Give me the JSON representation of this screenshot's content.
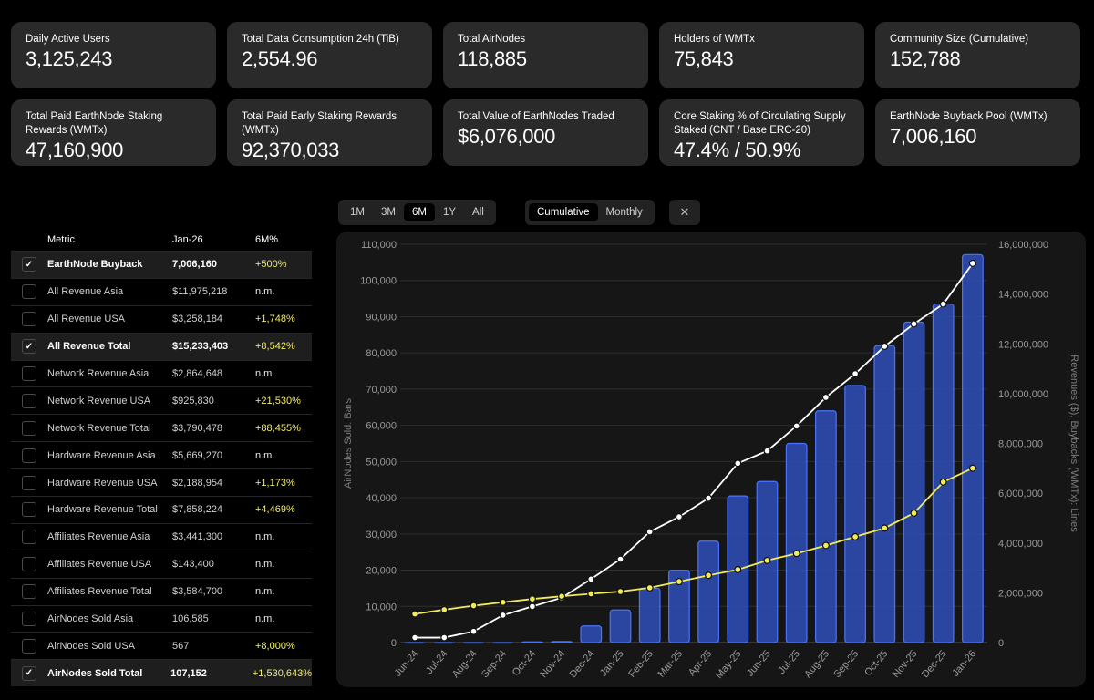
{
  "kpis": [
    {
      "label": "Daily Active Users",
      "value": "3,125,243"
    },
    {
      "label": "Total Data Consumption 24h (TiB)",
      "value": "2,554.96"
    },
    {
      "label": "Total AirNodes",
      "value": "118,885"
    },
    {
      "label": "Holders of WMTx",
      "value": "75,843"
    },
    {
      "label": "Community Size (Cumulative)",
      "value": "152,788"
    },
    {
      "label": "Total Paid EarthNode Staking Rewards (WMTx)",
      "value": "47,160,900"
    },
    {
      "label": "Total Paid Early Staking Rewards (WMTx)",
      "value": "92,370,033"
    },
    {
      "label": "Total Value of EarthNodes Traded",
      "value": "$6,076,000"
    },
    {
      "label": "Core Staking % of Circulating Supply Staked (CNT / Base ERC-20)",
      "value": "47.4% / 50.9%"
    },
    {
      "label": "EarthNode Buyback Pool (WMTx)",
      "value": "7,006,160"
    }
  ],
  "range_tabs": [
    "1M",
    "3M",
    "6M",
    "1Y",
    "All"
  ],
  "range_selected": "6M",
  "mode_tabs": [
    "Cumulative",
    "Monthly"
  ],
  "mode_selected": "Cumulative",
  "close_label": "✕",
  "table": {
    "headers": {
      "metric": "Metric",
      "period": "Jan-26",
      "change": "6M%"
    },
    "rows": [
      {
        "metric": "EarthNode Buyback",
        "value": "7,006,160",
        "change": "+500%",
        "checked": true
      },
      {
        "metric": "All Revenue Asia",
        "value": "$11,975,218",
        "change": "n.m.",
        "checked": false
      },
      {
        "metric": "All Revenue USA",
        "value": "$3,258,184",
        "change": "+1,748%",
        "checked": false
      },
      {
        "metric": "All Revenue Total",
        "value": "$15,233,403",
        "change": "+8,542%",
        "checked": true
      },
      {
        "metric": "Network Revenue Asia",
        "value": "$2,864,648",
        "change": "n.m.",
        "checked": false
      },
      {
        "metric": "Network Revenue USA",
        "value": "$925,830",
        "change": "+21,530%",
        "checked": false
      },
      {
        "metric": "Network Revenue Total",
        "value": "$3,790,478",
        "change": "+88,455%",
        "checked": false
      },
      {
        "metric": "Hardware Revenue Asia",
        "value": "$5,669,270",
        "change": "n.m.",
        "checked": false
      },
      {
        "metric": "Hardware Revenue USA",
        "value": "$2,188,954",
        "change": "+1,173%",
        "checked": false
      },
      {
        "metric": "Hardware Revenue Total",
        "value": "$7,858,224",
        "change": "+4,469%",
        "checked": false
      },
      {
        "metric": "Affiliates Revenue Asia",
        "value": "$3,441,300",
        "change": "n.m.",
        "checked": false
      },
      {
        "metric": "Affiliates Revenue USA",
        "value": "$143,400",
        "change": "n.m.",
        "checked": false
      },
      {
        "metric": "Affiliates Revenue Total",
        "value": "$3,584,700",
        "change": "n.m.",
        "checked": false
      },
      {
        "metric": "AirNodes Sold Asia",
        "value": "106,585",
        "change": "n.m.",
        "checked": false
      },
      {
        "metric": "AirNodes Sold USA",
        "value": "567",
        "change": "+8,000%",
        "checked": false
      },
      {
        "metric": "AirNodes Sold Total",
        "value": "107,152",
        "change": "+1,530,643%",
        "checked": true
      }
    ]
  },
  "chart_data": {
    "type": "bar+line",
    "categories": [
      "Jun-24",
      "Jul-24",
      "Aug-24",
      "Sep-24",
      "Oct-24",
      "Nov-24",
      "Dec-24",
      "Jan-25",
      "Feb-25",
      "Mar-25",
      "Apr-25",
      "May-25",
      "Jun-25",
      "Jul-25",
      "Aug-25",
      "Sep-25",
      "Oct-25",
      "Nov-25",
      "Dec-25",
      "Jan-26"
    ],
    "y_left": {
      "label": "AirNodes Sold: Bars",
      "range": [
        0,
        110000
      ],
      "ticks": [
        0,
        10000,
        20000,
        30000,
        40000,
        50000,
        60000,
        70000,
        80000,
        90000,
        100000,
        110000
      ],
      "tick_labels": [
        "0",
        "10,000",
        "20,000",
        "30,000",
        "40,000",
        "50,000",
        "60,000",
        "70,000",
        "80,000",
        "90,000",
        "100,000",
        "110,000"
      ]
    },
    "y_right": {
      "label": "Revenues ($), Buybacks (WMTx): Lines",
      "range": [
        0,
        16000000
      ],
      "ticks": [
        0,
        2000000,
        4000000,
        6000000,
        8000000,
        10000000,
        12000000,
        14000000,
        16000000
      ],
      "tick_labels": [
        "0",
        "2,000,000",
        "4,000,000",
        "6,000,000",
        "8,000,000",
        "10,000,000",
        "12,000,000",
        "14,000,000",
        "16,000,000"
      ]
    },
    "series": [
      {
        "name": "AirNodes Sold Total",
        "kind": "bar",
        "axis": "left",
        "color": "#2f4fb8",
        "values": [
          0,
          0,
          0,
          0,
          200,
          300,
          4600,
          9000,
          15000,
          20000,
          28000,
          40500,
          44500,
          55000,
          64000,
          71000,
          82000,
          88500,
          93500,
          107152
        ]
      },
      {
        "name": "All Revenue Total",
        "kind": "line",
        "axis": "right",
        "color": "#ffffff",
        "values": [
          200000,
          200000,
          450000,
          1100000,
          1450000,
          1800000,
          2550000,
          3350000,
          4450000,
          5050000,
          5800000,
          7200000,
          7700000,
          8700000,
          9850000,
          10800000,
          11900000,
          12800000,
          13600000,
          15233403
        ]
      },
      {
        "name": "EarthNode Buyback",
        "kind": "line",
        "axis": "right",
        "color": "#f1ea5a",
        "values": [
          1150000,
          1320000,
          1480000,
          1620000,
          1750000,
          1860000,
          1960000,
          2050000,
          2200000,
          2450000,
          2700000,
          2930000,
          3300000,
          3580000,
          3900000,
          4250000,
          4600000,
          5200000,
          6450000,
          7006160
        ]
      }
    ]
  }
}
